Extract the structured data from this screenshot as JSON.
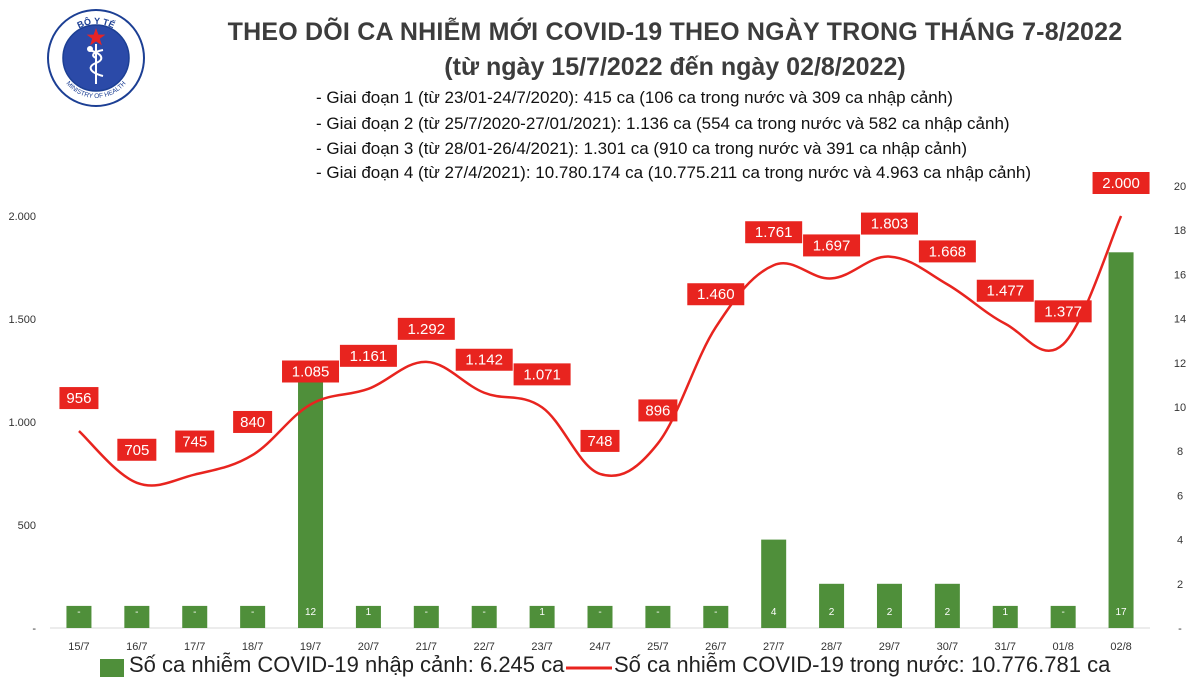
{
  "logo": {
    "top_text": "BỘ Y TẾ",
    "bottom_text": "MINISTRY OF HEALTH",
    "colors": {
      "ring": "#1c3f94",
      "fill": "#2b4aa8",
      "star": "#e52427"
    }
  },
  "header": {
    "title": "THEO DÕI CA NHIỄM MỚI COVID-19 THEO NGÀY TRONG THÁNG 7-8/2022",
    "subtitle": "(từ ngày 15/7/2022 đến ngày 02/8/2022)",
    "periods": [
      "- Giai đoạn 1 (từ 23/01-24/7/2020): 415 ca (106 ca trong nước và 309 ca nhập cảnh)",
      "- Giai đoạn 2 (từ 25/7/2020-27/01/2021): 1.136 ca (554 ca trong nước và 582 ca nhập cảnh)",
      "- Giai đoạn 3 (từ 28/01-26/4/2021): 1.301 ca (910 ca trong nước và 391 ca nhập cảnh)",
      "- Giai đoạn 4 (từ 27/4/2021): 10.780.174 ca (10.775.211 ca trong nước và 4.963 ca nhập cảnh)"
    ]
  },
  "legend": {
    "bars": "Số ca nhiễm COVID-19 nhập cảnh: 6.245 ca",
    "line": "Số ca nhiễm COVID-19 trong nước: 10.776.781 ca"
  },
  "colors": {
    "bar": "#4f8f3a",
    "line": "#e8241f",
    "label_bg": "#e8241f",
    "label_text": "#ffffff",
    "axis_text": "#333333"
  },
  "chart_data": {
    "type": "bar+line",
    "categories": [
      "15/7",
      "16/7",
      "17/7",
      "18/7",
      "19/7",
      "20/7",
      "21/7",
      "22/7",
      "23/7",
      "24/7",
      "25/7",
      "26/7",
      "27/7",
      "28/7",
      "29/7",
      "30/7",
      "31/7",
      "01/8",
      "02/8"
    ],
    "left_axis": {
      "min": 0,
      "max": 2000,
      "ticks": [
        0,
        500,
        1000,
        1500,
        2000
      ],
      "tick_labels": [
        "-",
        "500",
        "1.000",
        "1.500",
        "2.000"
      ]
    },
    "right_axis": {
      "min": 0,
      "max": 20,
      "ticks": [
        0,
        2,
        4,
        6,
        8,
        10,
        12,
        14,
        16,
        18,
        20
      ],
      "tick_labels": [
        "-",
        "2",
        "4",
        "6",
        "8",
        "10",
        "12",
        "14",
        "16",
        "18",
        "20"
      ]
    },
    "series": [
      {
        "name": "Số ca nhiễm COVID-19 nhập cảnh: 6.245 ca",
        "kind": "bar",
        "axis": "right",
        "values": [
          0,
          0,
          0,
          0,
          12,
          1,
          0,
          0,
          1,
          0,
          0,
          0,
          4,
          2,
          2,
          2,
          1,
          0,
          17
        ],
        "labels": [
          "-",
          "-",
          "-",
          "-",
          "12",
          "1",
          "-",
          "-",
          "1",
          "-",
          "-",
          "-",
          "4",
          "2",
          "2",
          "2",
          "1",
          "-",
          "17"
        ]
      },
      {
        "name": "Số ca nhiễm COVID-19 trong nước: 10.776.781 ca",
        "kind": "line",
        "axis": "left",
        "values": [
          956,
          705,
          745,
          840,
          1085,
          1161,
          1292,
          1142,
          1071,
          748,
          896,
          1460,
          1761,
          1697,
          1803,
          1668,
          1477,
          1377,
          2000
        ],
        "labels": [
          "956",
          "705",
          "745",
          "840",
          "1.085",
          "1.161",
          "1.292",
          "1.142",
          "1.071",
          "748",
          "896",
          "1.460",
          "1.761",
          "1.697",
          "1.803",
          "1.668",
          "1.477",
          "1.377",
          "2.000"
        ]
      }
    ]
  }
}
